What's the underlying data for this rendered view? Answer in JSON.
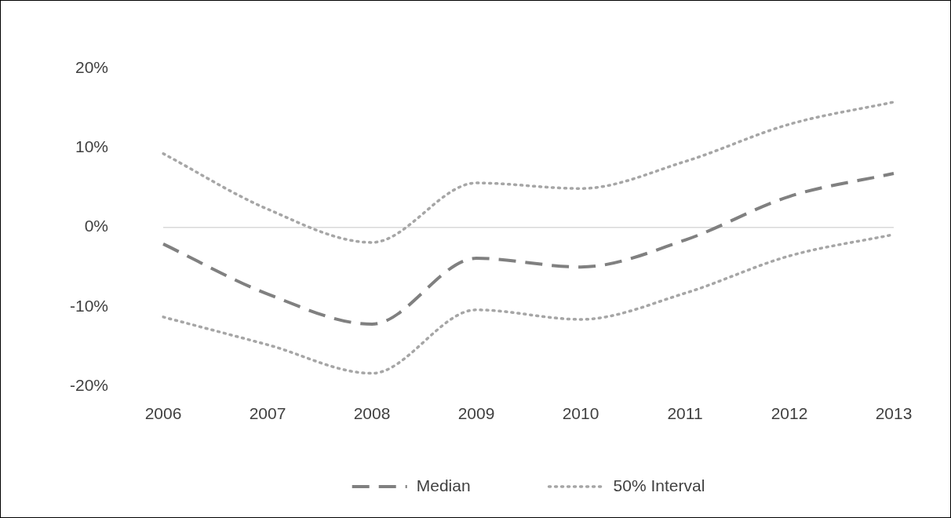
{
  "chart_data": {
    "type": "line",
    "categories": [
      "2006",
      "2007",
      "2008",
      "2009",
      "2010",
      "2011",
      "2012",
      "2013"
    ],
    "series": [
      {
        "name": "Median",
        "color": "#808080",
        "line_style": "dashed",
        "values": [
          -2.1,
          -8.4,
          -12.2,
          -3.9,
          -5.0,
          -1.6,
          3.9,
          6.8
        ]
      },
      {
        "name": "50% Interval",
        "color": "#a6a6a6",
        "line_style": "dotted",
        "values": [
          9.3,
          2.3,
          -1.9,
          5.6,
          4.9,
          8.3,
          13.0,
          15.8
        ]
      },
      {
        "color": "#a6a6a6",
        "line_style": "dotted",
        "values": [
          -11.3,
          -14.8,
          -18.4,
          -10.4,
          -11.6,
          -8.3,
          -3.6,
          -0.9
        ]
      }
    ],
    "ylim": [
      -20,
      20
    ],
    "yticks": [
      {
        "value": -20,
        "label": "-20%"
      },
      {
        "value": -10,
        "label": "-10%"
      },
      {
        "value": 0,
        "label": "0%"
      },
      {
        "value": 10,
        "label": "10%"
      },
      {
        "value": 20,
        "label": "20%"
      }
    ],
    "ref_lines": [
      {
        "axis": "y",
        "value": 0,
        "color": "#d9d9d9"
      }
    ],
    "grid": false,
    "legend": "bottom",
    "marker": "none"
  }
}
